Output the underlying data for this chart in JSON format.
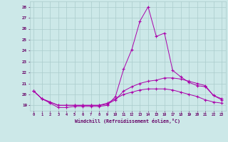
{
  "x": [
    0,
    1,
    2,
    3,
    4,
    5,
    6,
    7,
    8,
    9,
    10,
    11,
    12,
    13,
    14,
    15,
    16,
    17,
    18,
    19,
    20,
    21,
    22,
    23
  ],
  "line1": [
    20.3,
    19.6,
    19.2,
    18.8,
    18.8,
    18.9,
    18.9,
    18.9,
    18.9,
    19.0,
    19.8,
    22.3,
    24.1,
    26.7,
    28.0,
    25.3,
    25.6,
    22.2,
    21.6,
    21.1,
    20.8,
    20.7,
    19.9,
    19.6
  ],
  "line2": [
    20.3,
    19.6,
    19.3,
    19.0,
    19.0,
    19.0,
    19.0,
    19.0,
    19.0,
    19.1,
    19.5,
    20.3,
    20.7,
    21.0,
    21.2,
    21.3,
    21.5,
    21.5,
    21.4,
    21.2,
    21.0,
    20.8,
    19.9,
    19.5
  ],
  "line3": [
    20.3,
    19.6,
    19.3,
    19.0,
    19.0,
    19.0,
    19.0,
    19.0,
    19.0,
    19.2,
    19.6,
    20.0,
    20.2,
    20.4,
    20.5,
    20.5,
    20.5,
    20.4,
    20.2,
    20.0,
    19.8,
    19.5,
    19.3,
    19.2
  ],
  "bg_color": "#cce8e8",
  "grid_color": "#aacccc",
  "line_color": "#aa00aa",
  "marker": "+",
  "xlabel": "Windchill (Refroidissement éolien,°C)",
  "xlabel_color": "#660066",
  "ylim": [
    18.5,
    28.5
  ],
  "xlim": [
    -0.5,
    23.5
  ],
  "yticks": [
    19,
    20,
    21,
    22,
    23,
    24,
    25,
    26,
    27,
    28
  ],
  "xticks": [
    0,
    1,
    2,
    3,
    4,
    5,
    6,
    7,
    8,
    9,
    10,
    11,
    12,
    13,
    14,
    15,
    16,
    17,
    18,
    19,
    20,
    21,
    22,
    23
  ]
}
